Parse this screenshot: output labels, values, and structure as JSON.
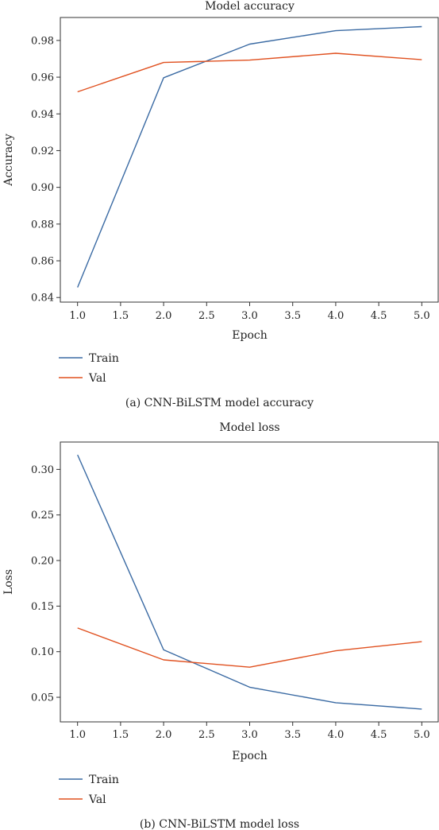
{
  "colors": {
    "train": "#3a6aa3",
    "val": "#e0501f",
    "axis": "#333333"
  },
  "chart_data": [
    {
      "type": "line",
      "title": "Model accuracy",
      "xlabel": "Epoch",
      "ylabel": "Accuracy",
      "xlim": [
        0.8,
        5.2
      ],
      "ylim": [
        0.8375,
        0.9925
      ],
      "xticks": [
        1.0,
        1.5,
        2.0,
        2.5,
        3.0,
        3.5,
        4.0,
        4.5,
        5.0
      ],
      "xtick_labels": [
        "1.0",
        "1.5",
        "2.0",
        "2.5",
        "3.0",
        "3.5",
        "4.0",
        "4.5",
        "5.0"
      ],
      "yticks": [
        0.84,
        0.86,
        0.88,
        0.9,
        0.92,
        0.94,
        0.96,
        0.98
      ],
      "ytick_labels": [
        "0.84",
        "0.86",
        "0.88",
        "0.90",
        "0.92",
        "0.94",
        "0.96",
        "0.98"
      ],
      "grid": false,
      "legend_position": "below-left",
      "x": [
        1,
        2,
        3,
        4,
        5
      ],
      "series": [
        {
          "name": "Train",
          "color_key": "train",
          "values": [
            0.8455,
            0.9597,
            0.978,
            0.9853,
            0.9875
          ]
        },
        {
          "name": "Val",
          "color_key": "val",
          "values": [
            0.952,
            0.968,
            0.9693,
            0.973,
            0.9695
          ]
        }
      ],
      "caption": "(a)  CNN-BiLSTM model accuracy"
    },
    {
      "type": "line",
      "title": "Model loss",
      "xlabel": "Epoch",
      "ylabel": "Loss",
      "xlim": [
        0.8,
        5.2
      ],
      "ylim": [
        0.023,
        0.33
      ],
      "xticks": [
        1.0,
        1.5,
        2.0,
        2.5,
        3.0,
        3.5,
        4.0,
        4.5,
        5.0
      ],
      "xtick_labels": [
        "1.0",
        "1.5",
        "2.0",
        "2.5",
        "3.0",
        "3.5",
        "4.0",
        "4.5",
        "5.0"
      ],
      "yticks": [
        0.05,
        0.1,
        0.15,
        0.2,
        0.25,
        0.3
      ],
      "ytick_labels": [
        "0.05",
        "0.10",
        "0.15",
        "0.20",
        "0.25",
        "0.30"
      ],
      "grid": false,
      "legend_position": "below-left",
      "x": [
        1,
        2,
        3,
        4,
        5
      ],
      "series": [
        {
          "name": "Train",
          "color_key": "train",
          "values": [
            0.316,
            0.102,
            0.061,
            0.044,
            0.037
          ]
        },
        {
          "name": "Val",
          "color_key": "val",
          "values": [
            0.126,
            0.091,
            0.083,
            0.101,
            0.111
          ]
        }
      ],
      "caption": "(b)  CNN-BiLSTM model loss"
    }
  ]
}
